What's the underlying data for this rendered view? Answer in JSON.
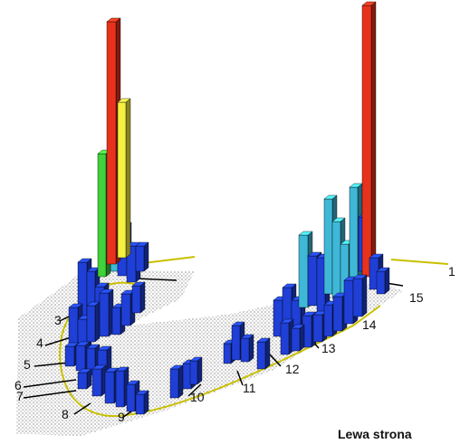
{
  "chart_data": {
    "type": "bar",
    "view": "3d",
    "caption": "Lewa strona",
    "region_labels": [
      "1",
      "3",
      "4",
      "5",
      "6",
      "7",
      "8",
      "9",
      "10",
      "11",
      "12",
      "13",
      "14",
      "15"
    ],
    "colors": {
      "blue": "#1f3fd6",
      "light_blue": "#3fb8d8",
      "red": "#e8321c",
      "yellow": "#f6f040",
      "green": "#3fd23a",
      "outline": "#c8c000"
    }
  }
}
